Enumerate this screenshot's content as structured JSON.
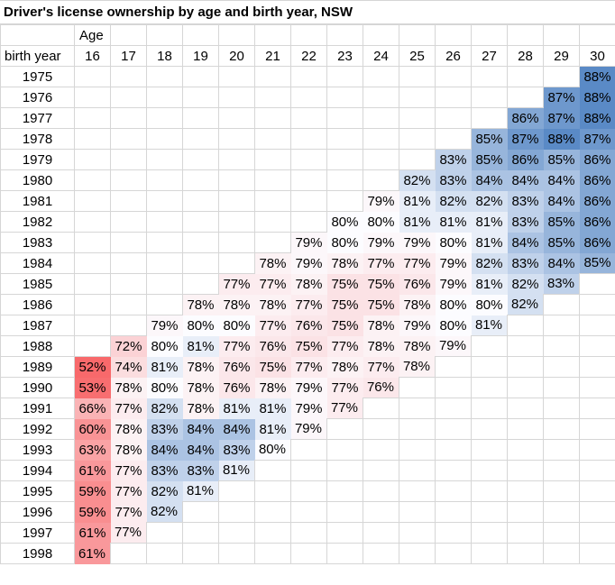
{
  "title": "Driver's license ownership by age and birth year, NSW",
  "axis": {
    "age_label": "Age",
    "row_label": "birth year"
  },
  "chart_data": {
    "type": "heatmap",
    "title": "Driver's license ownership by age and birth year, NSW",
    "xlabel": "Age",
    "ylabel": "birth year",
    "value_suffix": "%",
    "ages": [
      16,
      17,
      18,
      19,
      20,
      21,
      22,
      23,
      24,
      25,
      26,
      27,
      28,
      29,
      30
    ],
    "rows": [
      {
        "year": "1975",
        "values": [
          null,
          null,
          null,
          null,
          null,
          null,
          null,
          null,
          null,
          null,
          null,
          null,
          null,
          null,
          88
        ]
      },
      {
        "year": "1976",
        "values": [
          null,
          null,
          null,
          null,
          null,
          null,
          null,
          null,
          null,
          null,
          null,
          null,
          null,
          87,
          88
        ]
      },
      {
        "year": "1977",
        "values": [
          null,
          null,
          null,
          null,
          null,
          null,
          null,
          null,
          null,
          null,
          null,
          null,
          86,
          87,
          88
        ]
      },
      {
        "year": "1978",
        "values": [
          null,
          null,
          null,
          null,
          null,
          null,
          null,
          null,
          null,
          null,
          null,
          85,
          87,
          88,
          87
        ]
      },
      {
        "year": "1979",
        "values": [
          null,
          null,
          null,
          null,
          null,
          null,
          null,
          null,
          null,
          null,
          83,
          85,
          86,
          85,
          86
        ]
      },
      {
        "year": "1980",
        "values": [
          null,
          null,
          null,
          null,
          null,
          null,
          null,
          null,
          null,
          82,
          83,
          84,
          84,
          84,
          86
        ]
      },
      {
        "year": "1981",
        "values": [
          null,
          null,
          null,
          null,
          null,
          null,
          null,
          null,
          79,
          81,
          82,
          82,
          83,
          84,
          86
        ]
      },
      {
        "year": "1982",
        "values": [
          null,
          null,
          null,
          null,
          null,
          null,
          null,
          80,
          80,
          81,
          81,
          81,
          83,
          85,
          86
        ]
      },
      {
        "year": "1983",
        "values": [
          null,
          null,
          null,
          null,
          null,
          null,
          79,
          80,
          79,
          79,
          80,
          81,
          84,
          85,
          86
        ]
      },
      {
        "year": "1984",
        "values": [
          null,
          null,
          null,
          null,
          null,
          78,
          79,
          78,
          77,
          77,
          79,
          82,
          83,
          84,
          85
        ]
      },
      {
        "year": "1985",
        "values": [
          null,
          null,
          null,
          null,
          77,
          77,
          78,
          75,
          75,
          76,
          79,
          81,
          82,
          83,
          null
        ]
      },
      {
        "year": "1986",
        "values": [
          null,
          null,
          null,
          78,
          78,
          78,
          77,
          75,
          75,
          78,
          80,
          80,
          82,
          null,
          null
        ]
      },
      {
        "year": "1987",
        "values": [
          null,
          null,
          79,
          80,
          80,
          77,
          76,
          75,
          78,
          79,
          80,
          81,
          null,
          null,
          null
        ]
      },
      {
        "year": "1988",
        "values": [
          null,
          72,
          80,
          81,
          77,
          76,
          75,
          77,
          78,
          78,
          79,
          null,
          null,
          null,
          null
        ]
      },
      {
        "year": "1989",
        "values": [
          52,
          74,
          81,
          78,
          76,
          75,
          77,
          78,
          77,
          78,
          null,
          null,
          null,
          null,
          null
        ]
      },
      {
        "year": "1990",
        "values": [
          53,
          78,
          80,
          78,
          76,
          78,
          79,
          77,
          76,
          null,
          null,
          null,
          null,
          null,
          null
        ]
      },
      {
        "year": "1991",
        "values": [
          66,
          77,
          82,
          78,
          81,
          81,
          79,
          77,
          null,
          null,
          null,
          null,
          null,
          null,
          null
        ]
      },
      {
        "year": "1992",
        "values": [
          60,
          78,
          83,
          84,
          84,
          81,
          79,
          null,
          null,
          null,
          null,
          null,
          null,
          null,
          null
        ]
      },
      {
        "year": "1993",
        "values": [
          63,
          78,
          84,
          84,
          83,
          80,
          null,
          null,
          null,
          null,
          null,
          null,
          null,
          null,
          null
        ]
      },
      {
        "year": "1994",
        "values": [
          61,
          77,
          83,
          83,
          81,
          null,
          null,
          null,
          null,
          null,
          null,
          null,
          null,
          null,
          null
        ]
      },
      {
        "year": "1995",
        "values": [
          59,
          77,
          82,
          81,
          null,
          null,
          null,
          null,
          null,
          null,
          null,
          null,
          null,
          null,
          null
        ]
      },
      {
        "year": "1996",
        "values": [
          59,
          77,
          82,
          null,
          null,
          null,
          null,
          null,
          null,
          null,
          null,
          null,
          null,
          null,
          null
        ]
      },
      {
        "year": "1997",
        "values": [
          61,
          77,
          null,
          null,
          null,
          null,
          null,
          null,
          null,
          null,
          null,
          null,
          null,
          null,
          null
        ]
      },
      {
        "year": "1998",
        "values": [
          61,
          null,
          null,
          null,
          null,
          null,
          null,
          null,
          null,
          null,
          null,
          null,
          null,
          null,
          null
        ]
      }
    ],
    "color_scale": {
      "min_value": 52,
      "min_color": "#F8696B",
      "mid_value": 80,
      "mid_color": "#FCFCFF",
      "max_value": 88,
      "max_color": "#5A8AC6"
    },
    "gridline_color": "#D6D6D6",
    "legend": "none"
  }
}
